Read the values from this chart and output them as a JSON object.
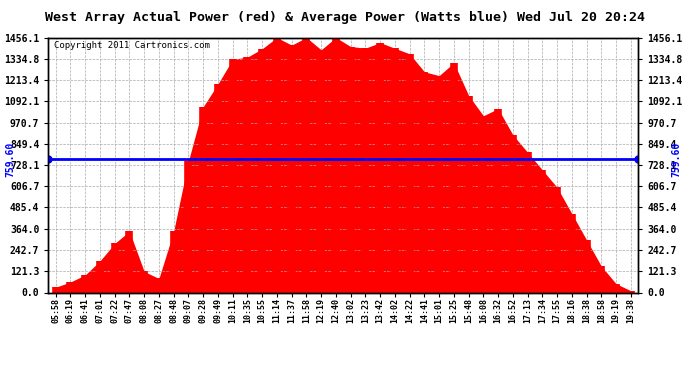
{
  "title": "West Array Actual Power (red) & Average Power (Watts blue) Wed Jul 20 20:24",
  "copyright": "Copyright 2011 Cartronics.com",
  "ymax": 1456.1,
  "ymin": 0.0,
  "ytick_values": [
    0.0,
    121.3,
    242.7,
    364.0,
    485.4,
    606.7,
    728.1,
    849.4,
    970.7,
    1092.1,
    1213.4,
    1334.8,
    1456.1
  ],
  "average_power": 759.6,
  "avg_label": "759.60",
  "bg_color": "#ffffff",
  "fill_color": "#ff0000",
  "line_color": "#0000ff",
  "grid_color": "#aaaaaa",
  "xtick_labels": [
    "05:58",
    "06:19",
    "06:41",
    "07:01",
    "07:22",
    "07:47",
    "08:08",
    "08:27",
    "08:48",
    "09:07",
    "09:28",
    "09:49",
    "10:11",
    "10:35",
    "10:55",
    "11:14",
    "11:37",
    "11:58",
    "12:19",
    "12:40",
    "13:02",
    "13:23",
    "13:42",
    "14:02",
    "14:22",
    "14:41",
    "15:01",
    "15:25",
    "15:48",
    "16:08",
    "16:32",
    "16:52",
    "17:13",
    "17:34",
    "17:55",
    "18:16",
    "18:38",
    "18:58",
    "19:19",
    "19:38"
  ],
  "power_values": [
    30,
    60,
    100,
    180,
    280,
    350,
    120,
    80,
    350,
    750,
    1050,
    1200,
    1280,
    1350,
    1380,
    1400,
    1410,
    1420,
    1430,
    1430,
    1400,
    1390,
    1380,
    1370,
    1360,
    1340,
    1300,
    1250,
    1100,
    950,
    1050,
    900,
    800,
    700,
    600,
    450,
    300,
    150,
    50,
    10
  ]
}
